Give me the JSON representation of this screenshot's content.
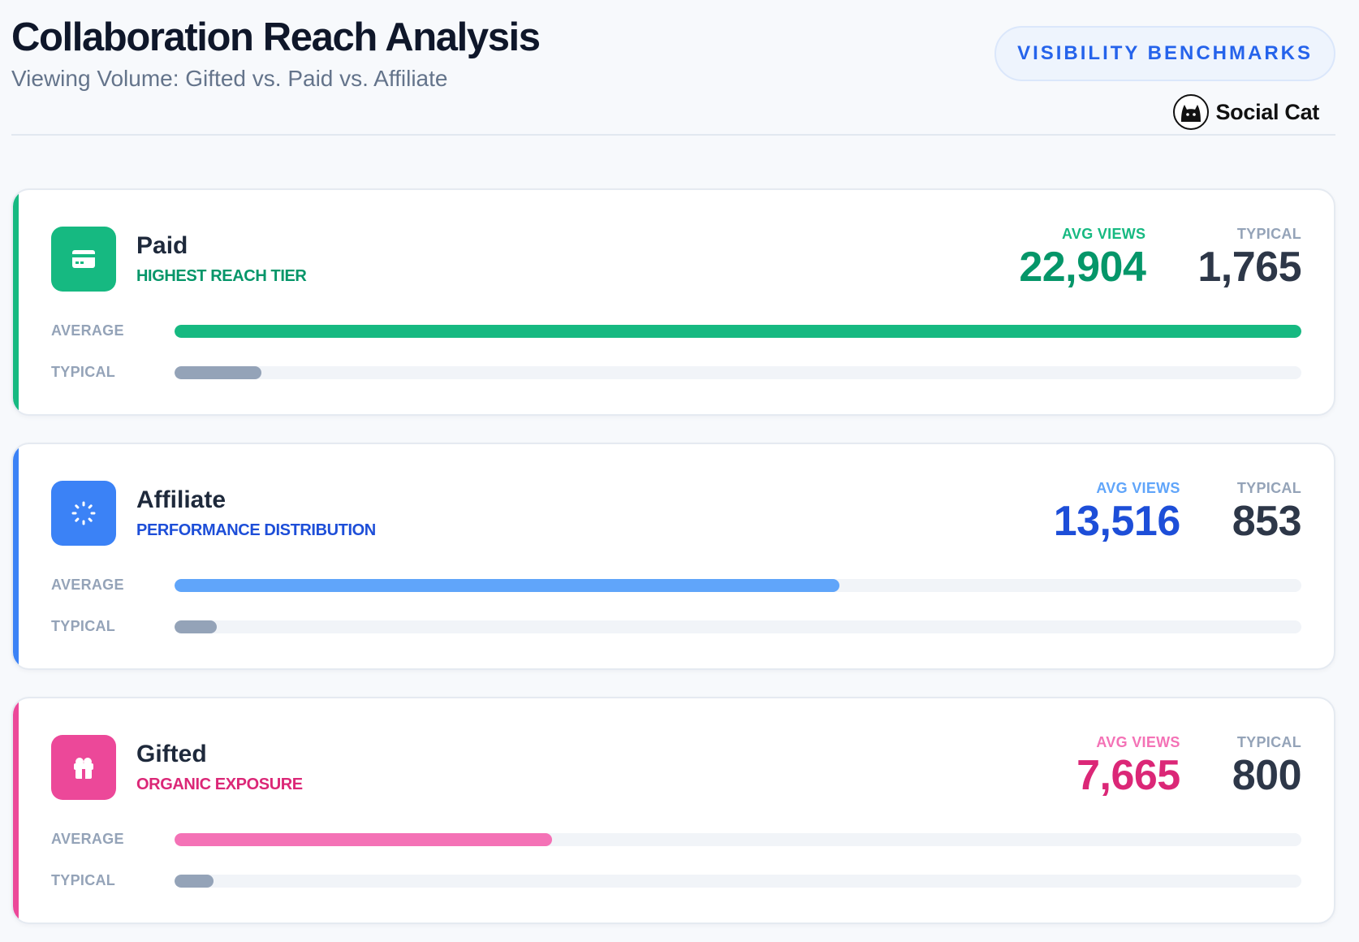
{
  "header": {
    "title": "Collaboration Reach Analysis",
    "subtitle": "Viewing Volume: Gifted vs. Paid vs. Affiliate",
    "benchmarks_button": "VISIBILITY BENCHMARKS",
    "brand_name": "Social Cat"
  },
  "labels": {
    "avg_views": "AVG VIEWS",
    "typical": "TYPICAL",
    "bar_average": "AVERAGE",
    "bar_typical": "TYPICAL"
  },
  "colors": {
    "paid": "#16b981",
    "paid_dark": "#059669",
    "affiliate": "#3b82f6",
    "affiliate_bar": "#60a5fa",
    "affiliate_dark": "#1d4ed8",
    "gifted": "#ec4899",
    "gifted_bar": "#f472b6",
    "gifted_dark": "#db2777",
    "typical_bar": "#94a3b8"
  },
  "chart_data": {
    "type": "bar",
    "orientation": "horizontal",
    "title": "Collaboration Reach Analysis",
    "subtitle": "Viewing Volume: Gifted vs. Paid vs. Affiliate",
    "scale_max": 22904,
    "categories": [
      {
        "key": "paid",
        "name": "Paid",
        "tag": "HIGHEST REACH TIER",
        "icon": "credit-card-icon",
        "avg_views": 22904,
        "avg_views_display": "22,904",
        "typical": 1765,
        "typical_display": "1,765"
      },
      {
        "key": "affiliate",
        "name": "Affiliate",
        "tag": "PERFORMANCE DISTRIBUTION",
        "icon": "spinner-icon",
        "avg_views": 13516,
        "avg_views_display": "13,516",
        "typical": 853,
        "typical_display": "853"
      },
      {
        "key": "gifted",
        "name": "Gifted",
        "tag": "ORGANIC EXPOSURE",
        "icon": "gift-icon",
        "avg_views": 7665,
        "avg_views_display": "7,665",
        "typical": 800,
        "typical_display": "800"
      }
    ],
    "series": [
      {
        "name": "AVERAGE",
        "values": [
          22904,
          13516,
          7665
        ]
      },
      {
        "name": "TYPICAL",
        "values": [
          1765,
          853,
          800
        ]
      }
    ]
  }
}
